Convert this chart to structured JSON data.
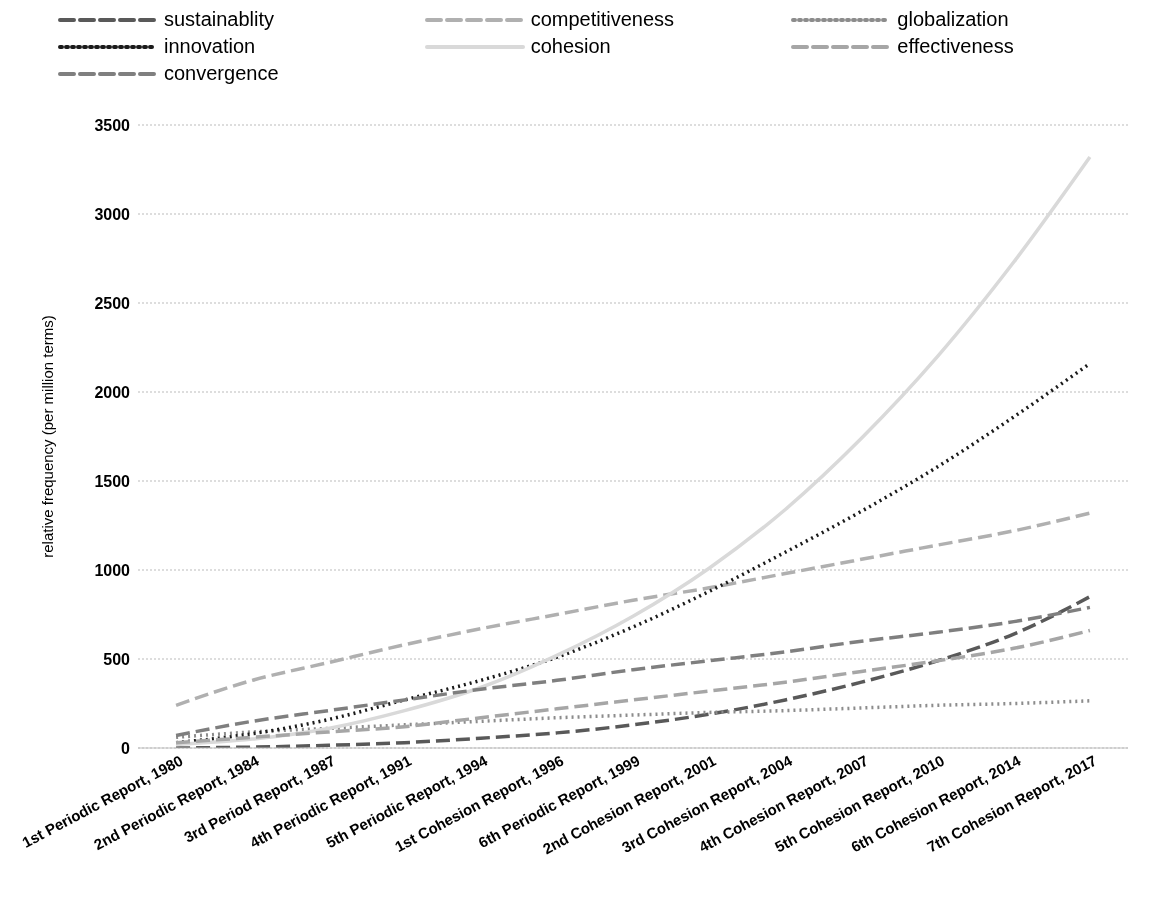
{
  "chart_data": {
    "type": "line",
    "ylabel": "relative frequency (per million terms)",
    "categories": [
      "1st Periodic Report, 1980",
      "2nd Periodic Report, 1984",
      "3rd Period Report, 1987",
      "4th Periodic Report, 1991",
      "5th Periodic Report, 1994",
      "1st Cohesion Report, 1996",
      "6th Periodic Report, 1999",
      "2nd Cohesion Report, 2001",
      "3rd Cohesion Report, 2004",
      "4th Cohesion Report, 2007",
      "5th Cohesion Report, 2010",
      "6th Cohesion Report, 2014",
      "7th Cohesion Report, 2017"
    ],
    "series": [
      {
        "name": "sustainablity",
        "color": "#595959",
        "line_style": "dashed",
        "values": [
          0,
          5,
          15,
          30,
          55,
          85,
          130,
          190,
          270,
          370,
          490,
          640,
          850
        ]
      },
      {
        "name": "competitiveness",
        "color": "#b0b0b0",
        "line_style": "dashed",
        "values": [
          240,
          380,
          480,
          580,
          670,
          750,
          830,
          900,
          980,
          1060,
          1140,
          1220,
          1320
        ]
      },
      {
        "name": "globalization",
        "color": "#8c8c8c",
        "line_style": "dotted",
        "values": [
          60,
          90,
          110,
          130,
          150,
          170,
          185,
          200,
          210,
          225,
          240,
          250,
          265
        ]
      },
      {
        "name": "innovation",
        "color": "#1a1a1a",
        "line_style": "dotted",
        "values": [
          30,
          80,
          160,
          270,
          380,
          510,
          680,
          880,
          1100,
          1330,
          1580,
          1860,
          2160
        ]
      },
      {
        "name": "cohesion",
        "color": "#d9d9d9",
        "line_style": "solid",
        "values": [
          20,
          50,
          110,
          210,
          340,
          520,
          740,
          1010,
          1340,
          1740,
          2200,
          2730,
          3320
        ]
      },
      {
        "name": "effectiveness",
        "color": "#a6a6a6",
        "line_style": "dashed",
        "values": [
          30,
          60,
          90,
          120,
          170,
          220,
          270,
          320,
          370,
          430,
          490,
          560,
          660
        ]
      },
      {
        "name": "convergence",
        "color": "#7f7f7f",
        "line_style": "dashed",
        "values": [
          70,
          150,
          210,
          270,
          330,
          380,
          440,
          490,
          540,
          600,
          650,
          710,
          790
        ]
      }
    ],
    "ylim": [
      0,
      3500
    ],
    "yticks": [
      0,
      500,
      1000,
      1500,
      2000,
      2500,
      3000,
      3500
    ],
    "grid": "y",
    "legend": "top",
    "marker": "none"
  }
}
